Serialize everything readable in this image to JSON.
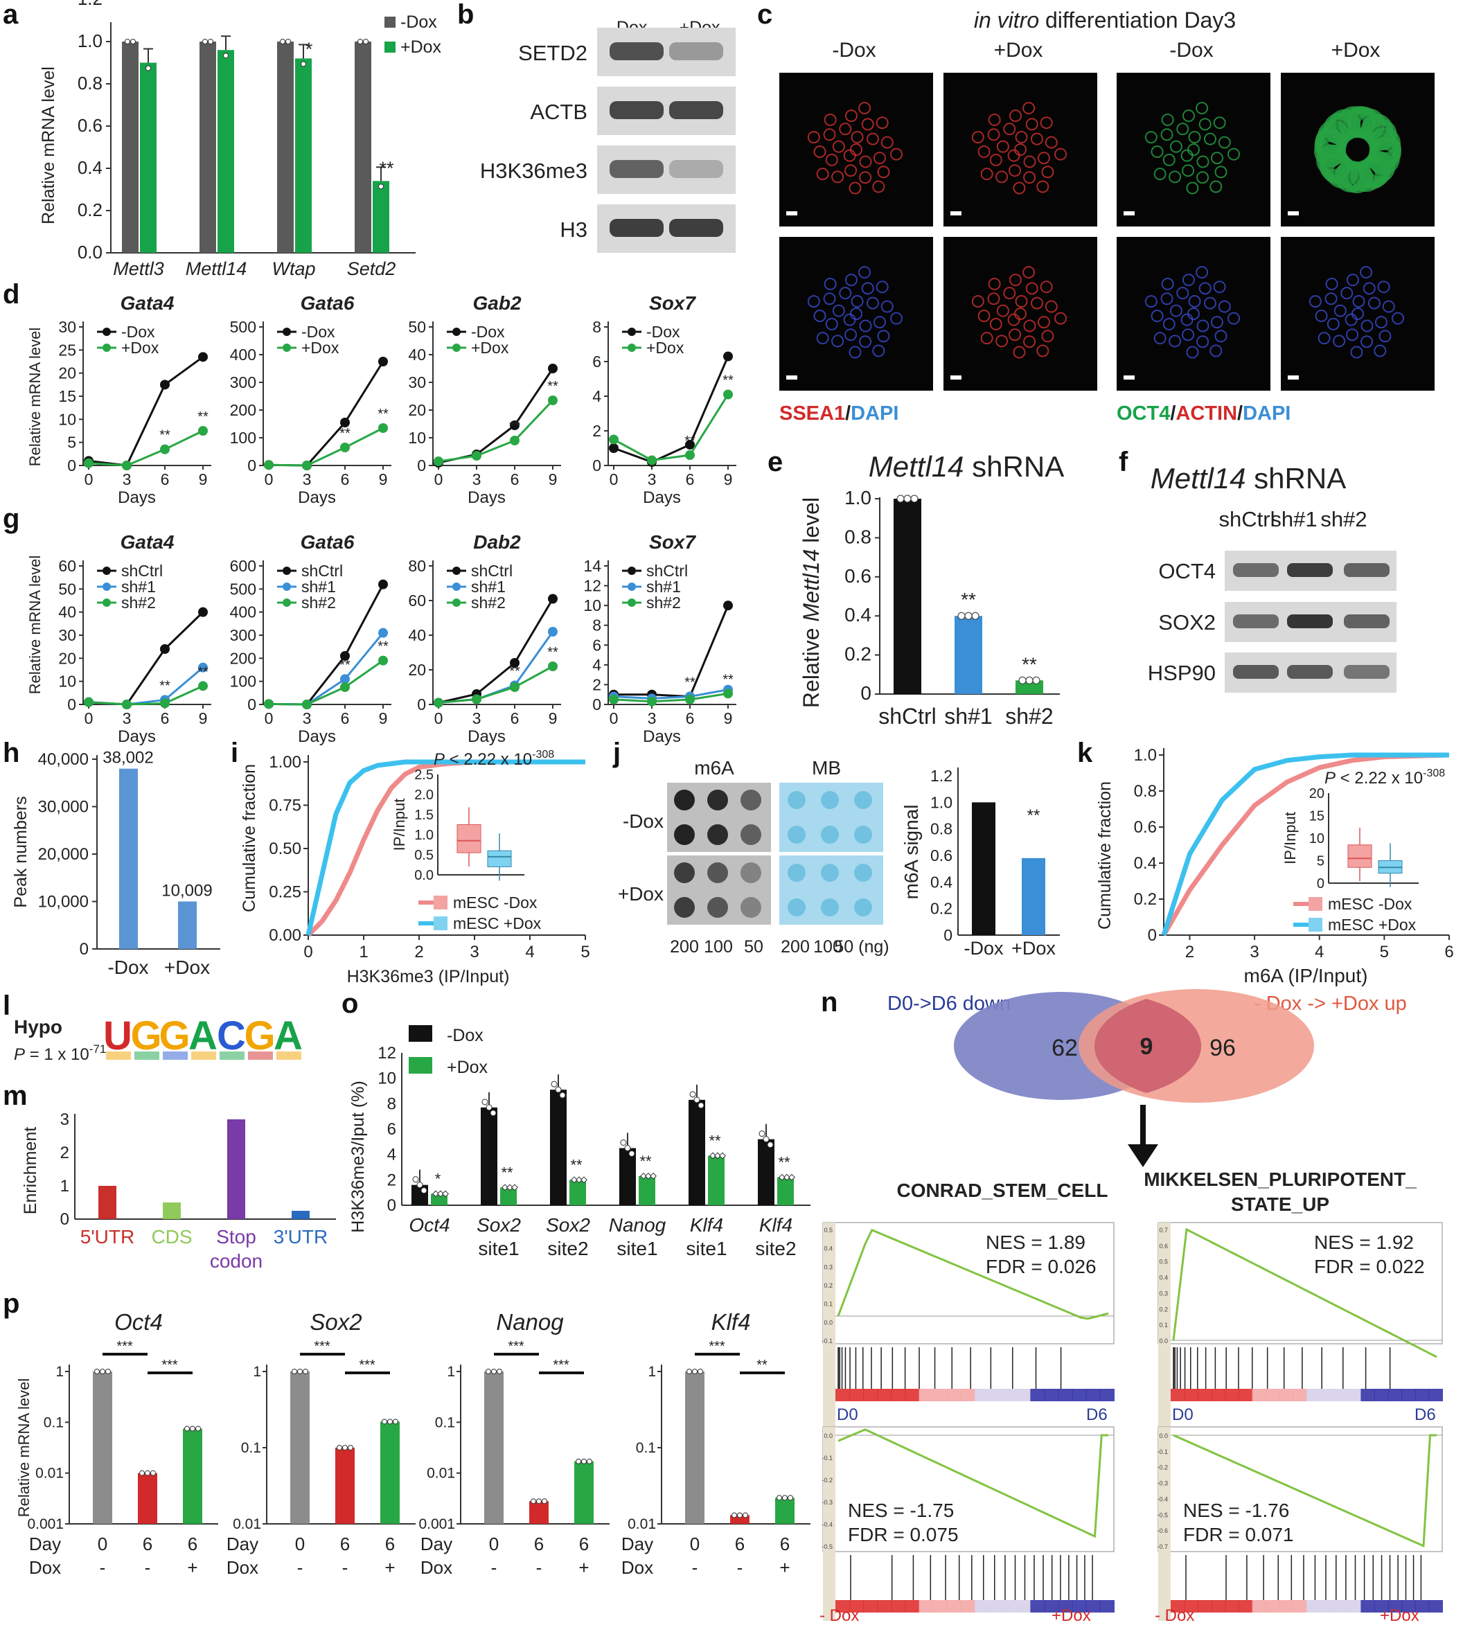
{
  "colors": {
    "ctrl_gray": "#5a5a5a",
    "dox_green": "#17a34a",
    "black": "#111111",
    "blue": "#3b8fd6",
    "green": "#28a745",
    "red": "#d22a2a",
    "gray": "#8c8c8c",
    "pink": "#f08a8a",
    "cyan": "#3cc0ee",
    "venn_blue": "#7d83c4",
    "venn_red": "#f19a8a",
    "gsea_line": "#82c341"
  },
  "panels": {
    "a": {
      "letter": "a",
      "ylabel": "Relative mRNA level",
      "legend": [
        "-Dox",
        "+Dox"
      ],
      "ticks": [
        "0.0",
        "0.2",
        "0.4",
        "0.6",
        "0.8",
        "1.0",
        "1.2"
      ],
      "categories": [
        "Mettl3",
        "Mettl14",
        "Wtap",
        "Setd2"
      ],
      "sig": [
        "*",
        "**"
      ]
    },
    "b": {
      "letter": "b",
      "cols": [
        "-Dox",
        "+Dox"
      ],
      "rows": [
        "SETD2",
        "ACTB",
        "H3K36me3",
        "H3"
      ]
    },
    "c": {
      "letter": "c",
      "title_italic": "in vitro",
      "title_rest": " differentiation Day3",
      "cols": [
        "-Dox",
        "+Dox",
        "-Dox",
        "+Dox"
      ],
      "label_left": {
        "a": "SSEA1",
        "b": "/",
        "c": "DAPI"
      },
      "label_right": {
        "a": "OCT4",
        "b": "/",
        "c": "ACTIN",
        "d": "/",
        "e": "DAPI"
      }
    },
    "d": {
      "letter": "d",
      "ylabel": "Relative mRNA level",
      "xlabel": "Days",
      "legend": [
        "-Dox",
        "+Dox"
      ],
      "genes": [
        "Gata4",
        "Gata6",
        "Gab2",
        "Sox7"
      ],
      "yticks": [
        [
          "0",
          "5",
          "10",
          "15",
          "20",
          "25",
          "30"
        ],
        [
          "0",
          "100",
          "200",
          "300",
          "400",
          "500"
        ],
        [
          "0",
          "10",
          "20",
          "30",
          "40",
          "50"
        ],
        [
          "0",
          "2",
          "4",
          "6",
          "8"
        ]
      ],
      "xticks": [
        "0",
        "3",
        "6",
        "9"
      ],
      "sig": "**"
    },
    "e": {
      "letter": "e",
      "title_italic": "Mettl14",
      "title_rest": " shRNA",
      "ylabel_a": "Relative ",
      "ylabel_b": "Mettl14",
      "ylabel_c": " level",
      "ticks": [
        "0",
        "0.2",
        "0.4",
        "0.6",
        "0.8",
        "1.0"
      ],
      "categories": [
        "shCtrl",
        "sh#1",
        "sh#2"
      ],
      "sig": "**"
    },
    "f": {
      "letter": "f",
      "title_italic": "Mettl14",
      "title_rest": " shRNA",
      "cols": [
        "shCtrl",
        "sh#1",
        "sh#2"
      ],
      "rows": [
        "OCT4",
        "SOX2",
        "HSP90"
      ]
    },
    "g": {
      "letter": "g",
      "ylabel": "Relative mRNA level",
      "xlabel": "Days",
      "legend": [
        "shCtrl",
        "sh#1",
        "sh#2"
      ],
      "genes": [
        "Gata4",
        "Gata6",
        "Dab2",
        "Sox7"
      ],
      "yticks": [
        [
          "0",
          "10",
          "20",
          "30",
          "40",
          "50",
          "60"
        ],
        [
          "0",
          "100",
          "200",
          "300",
          "400",
          "500",
          "600"
        ],
        [
          "0",
          "20",
          "40",
          "60",
          "80"
        ],
        [
          "0",
          "2",
          "4",
          "6",
          "8",
          "10",
          "12",
          "14"
        ]
      ],
      "xticks": [
        "0",
        "3",
        "6",
        "9"
      ],
      "sig": "**"
    },
    "h": {
      "letter": "h",
      "ylabel": "Peak numbers",
      "ticks": [
        "0",
        "10,000",
        "20,000",
        "30,000",
        "40,000"
      ],
      "categories": [
        "-Dox",
        "+Dox"
      ],
      "values_text": [
        "38,002",
        "10,009"
      ]
    },
    "i": {
      "letter": "i",
      "ylabel": "Cumulative fraction",
      "xlabel": "H3K36me3 (IP/Input)",
      "yticks": [
        "0.00",
        "0.25",
        "0.50",
        "0.75",
        "1.00"
      ],
      "xticks": [
        "0",
        "1",
        "2",
        "3",
        "4",
        "5"
      ],
      "inset_ylabel": "IP/Input",
      "inset_ticks": [
        "0.0",
        "0.5",
        "1.0",
        "1.5",
        "2.0",
        "2.5"
      ],
      "p_a": "P",
      "p_b": " < 2.22 x 10",
      "p_exp": "-308",
      "legend": [
        "mESC -Dox",
        "mESC +Dox"
      ]
    },
    "j": {
      "letter": "j",
      "cols": [
        "m6A",
        "MB"
      ],
      "rows": [
        "-Dox",
        "+Dox"
      ],
      "amounts": [
        "200",
        "100",
        "50",
        "200",
        "100",
        "50 (ng)"
      ],
      "ylabel": "m6A signal",
      "ticks": [
        "0",
        "0.2",
        "0.4",
        "0.6",
        "0.8",
        "1.0",
        "1.2"
      ],
      "categories": [
        "-Dox",
        "+Dox"
      ],
      "sig": "**"
    },
    "k": {
      "letter": "k",
      "ylabel": "Cumulative fraction",
      "xlabel": "m6A (IP/Input)",
      "yticks": [
        "0",
        "0.2",
        "0.4",
        "0.6",
        "0.8",
        "1.0"
      ],
      "xticks": [
        "2",
        "3",
        "4",
        "5",
        "6"
      ],
      "inset_ylabel": "IP/Input",
      "inset_ticks": [
        "0",
        "5",
        "10",
        "15",
        "20"
      ],
      "p_a": "P",
      "p_b": " < 2.22 x 10",
      "p_exp": "-308",
      "legend": [
        "mESC -Dox",
        "mESC +Dox"
      ]
    },
    "l": {
      "letter": "l",
      "label": "Hypo",
      "p_a": "P",
      "p_b": " = 1 x 10",
      "p_exp": "-71",
      "motif": [
        "U",
        "G",
        "G",
        "A",
        "C",
        "G",
        "A"
      ]
    },
    "m": {
      "letter": "m",
      "ylabel": "Enrichment",
      "ticks": [
        "0",
        "1",
        "2",
        "3"
      ],
      "categories": [
        "5'UTR",
        "CDS",
        "Stop",
        "3'UTR"
      ],
      "extra": "codon"
    },
    "n": {
      "letter": "n",
      "left_label": "D0->D6 down",
      "right_label": "- Dox -> +Dox up",
      "left_n": "62",
      "mid_n": "9",
      "right_n": "96",
      "gsea_titles": [
        "CONRAD_STEM_CELL",
        "MIKKELSEN_PLURIPOTENT_",
        "STATE_UP"
      ],
      "top_stats": [
        [
          "NES = 1.89",
          "FDR = 0.026"
        ],
        [
          "NES = 1.92",
          "FDR = 0.022"
        ]
      ],
      "bottom_stats": [
        [
          "NES = -1.75",
          "FDR = 0.075"
        ],
        [
          "NES = -1.76",
          "FDR = 0.071"
        ]
      ],
      "top_ends": [
        "D0",
        "D6"
      ],
      "bottom_ends": [
        "- Dox",
        "+Dox"
      ],
      "gsea_ticks_top": [
        "0.5",
        "0.4",
        "0.3",
        "0.2",
        "0.1",
        "0.0",
        "-0.1"
      ],
      "gsea_ticks_bottom": [
        "0.0",
        "-0.1",
        "-0.2",
        "-0.3",
        "-0.4",
        "-0.5"
      ],
      "gsea_ticks_top2": [
        "0.7",
        "0.6",
        "0.5",
        "0.4",
        "0.3",
        "0.2",
        "0.1",
        "0.0"
      ],
      "gsea_ticks_bottom2": [
        "0.0",
        "-0.1",
        "-0.2",
        "-0.3",
        "-0.4",
        "-0.5",
        "-0.6",
        "-0.7"
      ]
    },
    "o": {
      "letter": "o",
      "ylabel": "H3K36me3/Iput (%)",
      "legend": [
        "-Dox",
        "+Dox"
      ],
      "ticks": [
        "0",
        "2",
        "4",
        "6",
        "8",
        "10",
        "12"
      ],
      "cat_top": [
        "Oct4",
        "Sox2",
        "Sox2",
        "Nanog",
        "Klf4",
        "Klf4"
      ],
      "cat_bottom": [
        "",
        "site1",
        "site2",
        "site1",
        "site1",
        "site2"
      ],
      "sig": [
        "*",
        "**"
      ]
    },
    "p": {
      "letter": "p",
      "ylabel": "Relative mRNA level",
      "genes": [
        "Oct4",
        "Sox2",
        "Nanog",
        "Klf4"
      ],
      "row_labels": [
        "Day",
        "Dox"
      ],
      "days": [
        "0",
        "6",
        "6"
      ],
      "dox": [
        "-",
        "-",
        "+"
      ],
      "ticks_3": [
        "0.001",
        "0.01",
        "0.1",
        "1"
      ],
      "ticks_2": [
        "0.01",
        "0.1",
        "1"
      ],
      "sig": [
        "***",
        "***",
        "***",
        "***",
        "***",
        "***",
        "***",
        "**"
      ]
    }
  },
  "chart_data": [
    {
      "type": "bar",
      "panel": "a",
      "categories": [
        "Mettl3",
        "Mettl14",
        "Wtap",
        "Setd2"
      ],
      "series": [
        {
          "name": "-Dox",
          "values": [
            1.0,
            1.0,
            1.0,
            1.0
          ]
        },
        {
          "name": "+Dox",
          "values": [
            0.9,
            0.96,
            0.92,
            0.34
          ]
        }
      ],
      "ylim": [
        0,
        1.2
      ]
    },
    {
      "type": "line",
      "panel": "d",
      "gene": "Gata4",
      "x": [
        0,
        3,
        6,
        9
      ],
      "series": [
        {
          "name": "-Dox",
          "values": [
            1,
            0,
            17.5,
            23.5
          ]
        },
        {
          "name": "+Dox",
          "values": [
            0.5,
            0,
            3.5,
            7.5
          ]
        }
      ],
      "ylim": [
        0,
        30
      ]
    },
    {
      "type": "line",
      "panel": "d",
      "gene": "Gata6",
      "x": [
        0,
        3,
        6,
        9
      ],
      "series": [
        {
          "name": "-Dox",
          "values": [
            2,
            0,
            155,
            375
          ]
        },
        {
          "name": "+Dox",
          "values": [
            2,
            0,
            65,
            135
          ]
        }
      ],
      "ylim": [
        0,
        500
      ]
    },
    {
      "type": "line",
      "panel": "d",
      "gene": "Gab2",
      "x": [
        0,
        3,
        6,
        9
      ],
      "series": [
        {
          "name": "-Dox",
          "values": [
            1,
            4,
            14.5,
            35
          ]
        },
        {
          "name": "+Dox",
          "values": [
            1.5,
            3.5,
            9,
            23.5
          ]
        }
      ],
      "ylim": [
        0,
        50
      ]
    },
    {
      "type": "line",
      "panel": "d",
      "gene": "Sox7",
      "x": [
        0,
        3,
        6,
        9
      ],
      "series": [
        {
          "name": "-Dox",
          "values": [
            1,
            0.2,
            1.2,
            6.3
          ]
        },
        {
          "name": "+Dox",
          "values": [
            1.5,
            0.3,
            0.6,
            4.1
          ]
        }
      ],
      "ylim": [
        0,
        8
      ]
    },
    {
      "type": "line",
      "panel": "g",
      "gene": "Gata4",
      "x": [
        0,
        3,
        6,
        9
      ],
      "series": [
        {
          "name": "shCtrl",
          "values": [
            1,
            0,
            24,
            40
          ]
        },
        {
          "name": "sh#1",
          "values": [
            1,
            0,
            2,
            16
          ]
        },
        {
          "name": "sh#2",
          "values": [
            1,
            0,
            0.5,
            8
          ]
        }
      ],
      "ylim": [
        0,
        60
      ]
    },
    {
      "type": "line",
      "panel": "g",
      "gene": "Gata6",
      "x": [
        0,
        3,
        6,
        9
      ],
      "series": [
        {
          "name": "shCtrl",
          "values": [
            2,
            0,
            210,
            520
          ]
        },
        {
          "name": "sh#1",
          "values": [
            2,
            0,
            110,
            310
          ]
        },
        {
          "name": "sh#2",
          "values": [
            2,
            0,
            75,
            190
          ]
        }
      ],
      "ylim": [
        0,
        600
      ]
    },
    {
      "type": "line",
      "panel": "g",
      "gene": "Dab2",
      "x": [
        0,
        3,
        6,
        9
      ],
      "series": [
        {
          "name": "shCtrl",
          "values": [
            1,
            6,
            24,
            61
          ]
        },
        {
          "name": "sh#1",
          "values": [
            1,
            3,
            11,
            42
          ]
        },
        {
          "name": "sh#2",
          "values": [
            1,
            3,
            10,
            22
          ]
        }
      ],
      "ylim": [
        0,
        80
      ]
    },
    {
      "type": "line",
      "panel": "g",
      "gene": "Sox7",
      "x": [
        0,
        3,
        6,
        9
      ],
      "series": [
        {
          "name": "shCtrl",
          "values": [
            1,
            1,
            0.8,
            10
          ]
        },
        {
          "name": "sh#1",
          "values": [
            0.8,
            0.6,
            0.8,
            1.5
          ]
        },
        {
          "name": "sh#2",
          "values": [
            0.5,
            0.3,
            0.5,
            1.1
          ]
        }
      ],
      "ylim": [
        0,
        14
      ]
    },
    {
      "type": "bar",
      "panel": "e",
      "categories": [
        "shCtrl",
        "sh#1",
        "sh#2"
      ],
      "values": [
        1.0,
        0.4,
        0.07
      ],
      "ylim": [
        0,
        1.0
      ]
    },
    {
      "type": "bar",
      "panel": "h",
      "categories": [
        "-Dox",
        "+Dox"
      ],
      "values": [
        38002,
        10009
      ],
      "ylim": [
        0,
        40000
      ]
    },
    {
      "type": "line",
      "panel": "i",
      "x": [
        0,
        0.25,
        0.5,
        0.75,
        1,
        1.25,
        1.5,
        1.75,
        2,
        2.5,
        3,
        4,
        5
      ],
      "series": [
        {
          "name": "mESC -Dox",
          "values": [
            0,
            0.08,
            0.2,
            0.36,
            0.55,
            0.72,
            0.85,
            0.93,
            0.97,
            0.99,
            1,
            1,
            1
          ]
        },
        {
          "name": "mESC +Dox",
          "values": [
            0,
            0.35,
            0.7,
            0.88,
            0.95,
            0.98,
            0.99,
            1,
            1,
            1,
            1,
            1,
            1
          ]
        }
      ],
      "ylim": [
        0,
        1
      ],
      "xlim": [
        0,
        5
      ]
    },
    {
      "type": "bar",
      "panel": "j",
      "categories": [
        "-Dox",
        "+Dox"
      ],
      "values": [
        1.0,
        0.58
      ],
      "ylim": [
        0,
        1.2
      ]
    },
    {
      "type": "line",
      "panel": "k",
      "x": [
        1.6,
        2,
        2.5,
        3,
        3.5,
        4,
        4.5,
        5,
        6
      ],
      "series": [
        {
          "name": "mESC -Dox",
          "values": [
            0,
            0.25,
            0.5,
            0.72,
            0.85,
            0.93,
            0.97,
            0.99,
            1
          ]
        },
        {
          "name": "mESC +Dox",
          "values": [
            0,
            0.45,
            0.75,
            0.92,
            0.97,
            0.99,
            1,
            1,
            1
          ]
        }
      ],
      "ylim": [
        0,
        1
      ],
      "xlim": [
        1.6,
        6
      ]
    },
    {
      "type": "bar",
      "panel": "m",
      "categories": [
        "5'UTR",
        "CDS",
        "Stop codon",
        "3'UTR"
      ],
      "values": [
        1.0,
        0.5,
        3.0,
        0.25
      ],
      "ylim": [
        0,
        3
      ]
    },
    {
      "type": "bar",
      "panel": "o",
      "categories": [
        "Oct4",
        "Sox2 site1",
        "Sox2 site2",
        "Nanog site1",
        "Klf4 site1",
        "Klf4 site2"
      ],
      "series": [
        {
          "name": "-Dox",
          "values": [
            1.6,
            7.7,
            9.1,
            4.5,
            8.3,
            5.2
          ]
        },
        {
          "name": "+Dox",
          "values": [
            0.9,
            1.4,
            2.0,
            2.3,
            3.9,
            2.2
          ]
        }
      ],
      "ylim": [
        0,
        12
      ]
    },
    {
      "type": "bar",
      "panel": "p",
      "gene": "Oct4",
      "categories": [
        "Day0",
        "Day6 -Dox",
        "Day6 +Dox"
      ],
      "values": [
        1,
        0.01,
        0.075
      ],
      "ylim": [
        0.001,
        1
      ]
    },
    {
      "type": "bar",
      "panel": "p",
      "gene": "Sox2",
      "categories": [
        "Day0",
        "Day6 -Dox",
        "Day6 +Dox"
      ],
      "values": [
        1,
        0.1,
        0.22
      ],
      "ylim": [
        0.01,
        1
      ]
    },
    {
      "type": "bar",
      "panel": "p",
      "gene": "Nanog",
      "categories": [
        "Day0",
        "Day6 -Dox",
        "Day6 +Dox"
      ],
      "values": [
        1,
        0.0028,
        0.017
      ],
      "ylim": [
        0.001,
        1
      ]
    },
    {
      "type": "bar",
      "panel": "p",
      "gene": "Klf4",
      "categories": [
        "Day0",
        "Day6 -Dox",
        "Day6 +Dox"
      ],
      "values": [
        1,
        0.013,
        0.022
      ],
      "ylim": [
        0.01,
        1
      ]
    }
  ]
}
